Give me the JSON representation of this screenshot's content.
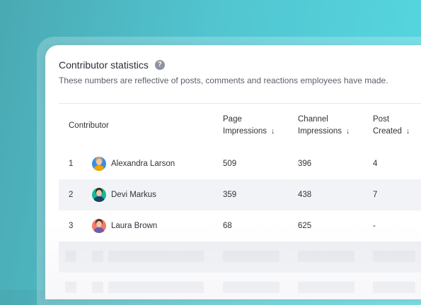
{
  "panel": {
    "title": "Contributor statistics",
    "help_icon": "?",
    "subtitle": "These numbers are reflective of posts, comments and reactions employees have made."
  },
  "columns": {
    "contributor": "Contributor",
    "page_impressions": [
      "Page",
      "Impressions"
    ],
    "channel_impressions": [
      "Channel",
      "Impressions"
    ],
    "post_created": [
      "Post",
      "Created"
    ],
    "sort_icon": "↓"
  },
  "rows": [
    {
      "rank": "1",
      "name": "Alexandra Larson",
      "page_impressions": "509",
      "channel_impressions": "396",
      "post_created": "4",
      "avatar_bg": "#3a8fe0",
      "avatar_shirt": "#f0a500",
      "hair": "#caa070"
    },
    {
      "rank": "2",
      "name": "Devi Markus",
      "page_impressions": "359",
      "channel_impressions": "438",
      "post_created": "7",
      "avatar_bg": "#17b89a",
      "avatar_shirt": "#1f3f66",
      "hair": "#3a2a20"
    },
    {
      "rank": "3",
      "name": "Laura Brown",
      "page_impressions": "68",
      "channel_impressions": "625",
      "post_created": "-",
      "avatar_bg": "#f07c6a",
      "avatar_shirt": "#6c5da8",
      "hair": "#5a2e1e"
    }
  ],
  "colors": {
    "accent_teal": "#51c4cf",
    "row_alt": "#f2f3f6",
    "skeleton": "#e3e5ea"
  }
}
